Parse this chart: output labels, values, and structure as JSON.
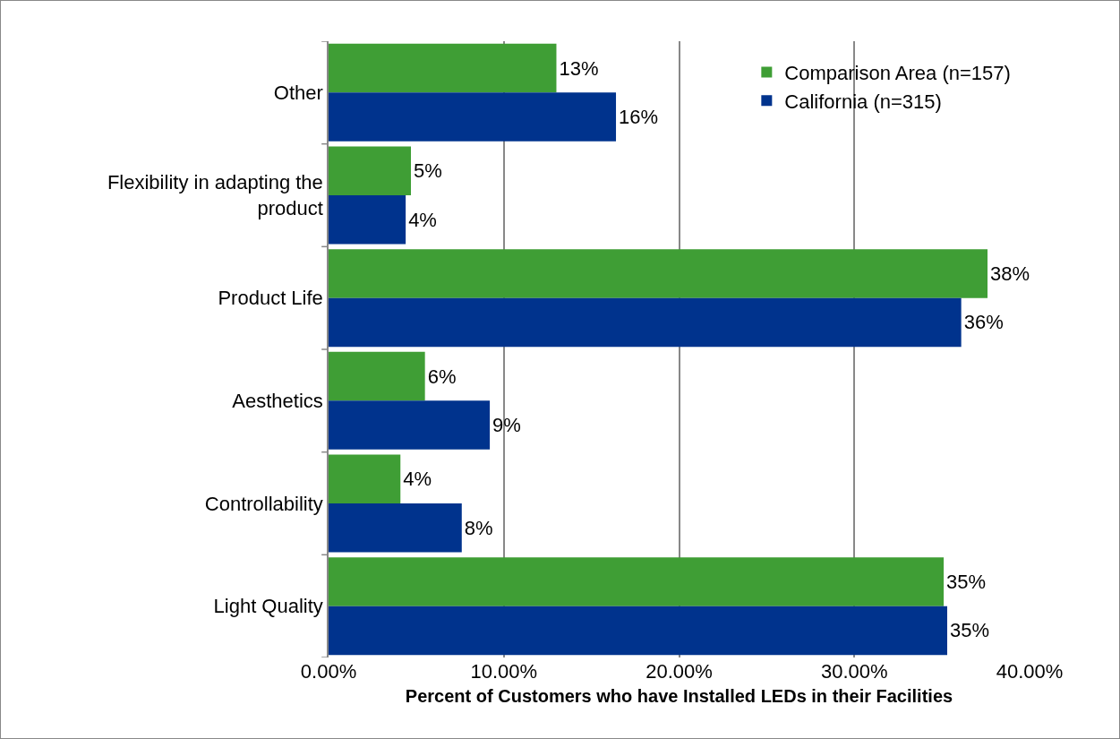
{
  "chart_data": {
    "type": "bar",
    "orientation": "horizontal",
    "xlabel": "Percent of Customers who have Installed LEDs in their Facilities",
    "categories": [
      "Other",
      "Flexibility in adapting the product",
      "Product Life",
      "Aesthetics",
      "Controllability",
      "Light Quality"
    ],
    "series": [
      {
        "name": "Comparison Area (n=157)",
        "color": "#3f9e35",
        "values": [
          13.0,
          4.7,
          37.6,
          5.5,
          4.1,
          35.1
        ],
        "value_labels": [
          "13%",
          "5%",
          "38%",
          "6%",
          "4%",
          "35%"
        ]
      },
      {
        "name": "California (n=315)",
        "color": "#00338d",
        "values": [
          16.4,
          4.4,
          36.1,
          9.2,
          7.6,
          35.3
        ],
        "value_labels": [
          "16%",
          "4%",
          "36%",
          "9%",
          "8%",
          "35%"
        ]
      }
    ],
    "xlim": [
      0,
      40
    ],
    "xticks": [
      {
        "value": 0,
        "label": "0.00%"
      },
      {
        "value": 10,
        "label": "10.00%"
      },
      {
        "value": 20,
        "label": "20.00%"
      },
      {
        "value": 30,
        "label": "30.00%"
      },
      {
        "value": 40,
        "label": "40.00%"
      }
    ],
    "grid": "x",
    "legend": "top right"
  }
}
